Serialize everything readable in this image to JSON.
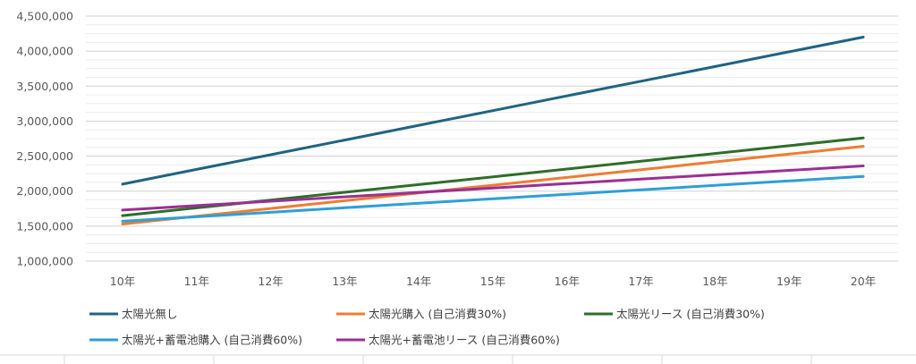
{
  "chart_data": {
    "type": "line",
    "title": "",
    "xlabel": "",
    "ylabel": "",
    "categories": [
      "10年",
      "11年",
      "12年",
      "13年",
      "14年",
      "15年",
      "16年",
      "17年",
      "18年",
      "19年",
      "20年"
    ],
    "ylim": [
      1000000,
      4500000
    ],
    "y_ticks": [
      1000000,
      1500000,
      2000000,
      2500000,
      3000000,
      3500000,
      4000000,
      4500000
    ],
    "y_tick_labels": [
      "1,000,000",
      "1,500,000",
      "2,000,000",
      "2,500,000",
      "3,000,000",
      "3,500,000",
      "4,000,000",
      "4,500,000"
    ],
    "grid": true,
    "legend_position": "bottom",
    "series": [
      {
        "name": "太陽光無し",
        "color": "#1f6482",
        "values": [
          2100000,
          2310000,
          2520000,
          2730000,
          2940000,
          3150000,
          3360000,
          3570000,
          3780000,
          3990000,
          4200000
        ]
      },
      {
        "name": "太陽光購入 (自己消費30%)",
        "color": "#ed7d31",
        "values": [
          1530000,
          1641000,
          1752000,
          1863000,
          1974000,
          2085000,
          2196000,
          2307000,
          2418000,
          2529000,
          2640000
        ]
      },
      {
        "name": "太陽光リース (自己消費30%)",
        "color": "#2e6e2a",
        "values": [
          1650000,
          1761000,
          1872000,
          1983000,
          2094000,
          2205000,
          2316000,
          2427000,
          2538000,
          2649000,
          2760000
        ]
      },
      {
        "name": "太陽光+蓄電池購入 (自己消費60%)",
        "color": "#2e9fd8",
        "values": [
          1570000,
          1634000,
          1698000,
          1762000,
          1826000,
          1890000,
          1954000,
          2018000,
          2082000,
          2146000,
          2210000
        ]
      },
      {
        "name": "太陽光+蓄電池リース (自己消費60%)",
        "color": "#9b2f94",
        "values": [
          1730000,
          1793000,
          1856000,
          1919000,
          1982000,
          2045000,
          2108000,
          2171000,
          2234000,
          2297000,
          2360000
        ]
      }
    ]
  }
}
